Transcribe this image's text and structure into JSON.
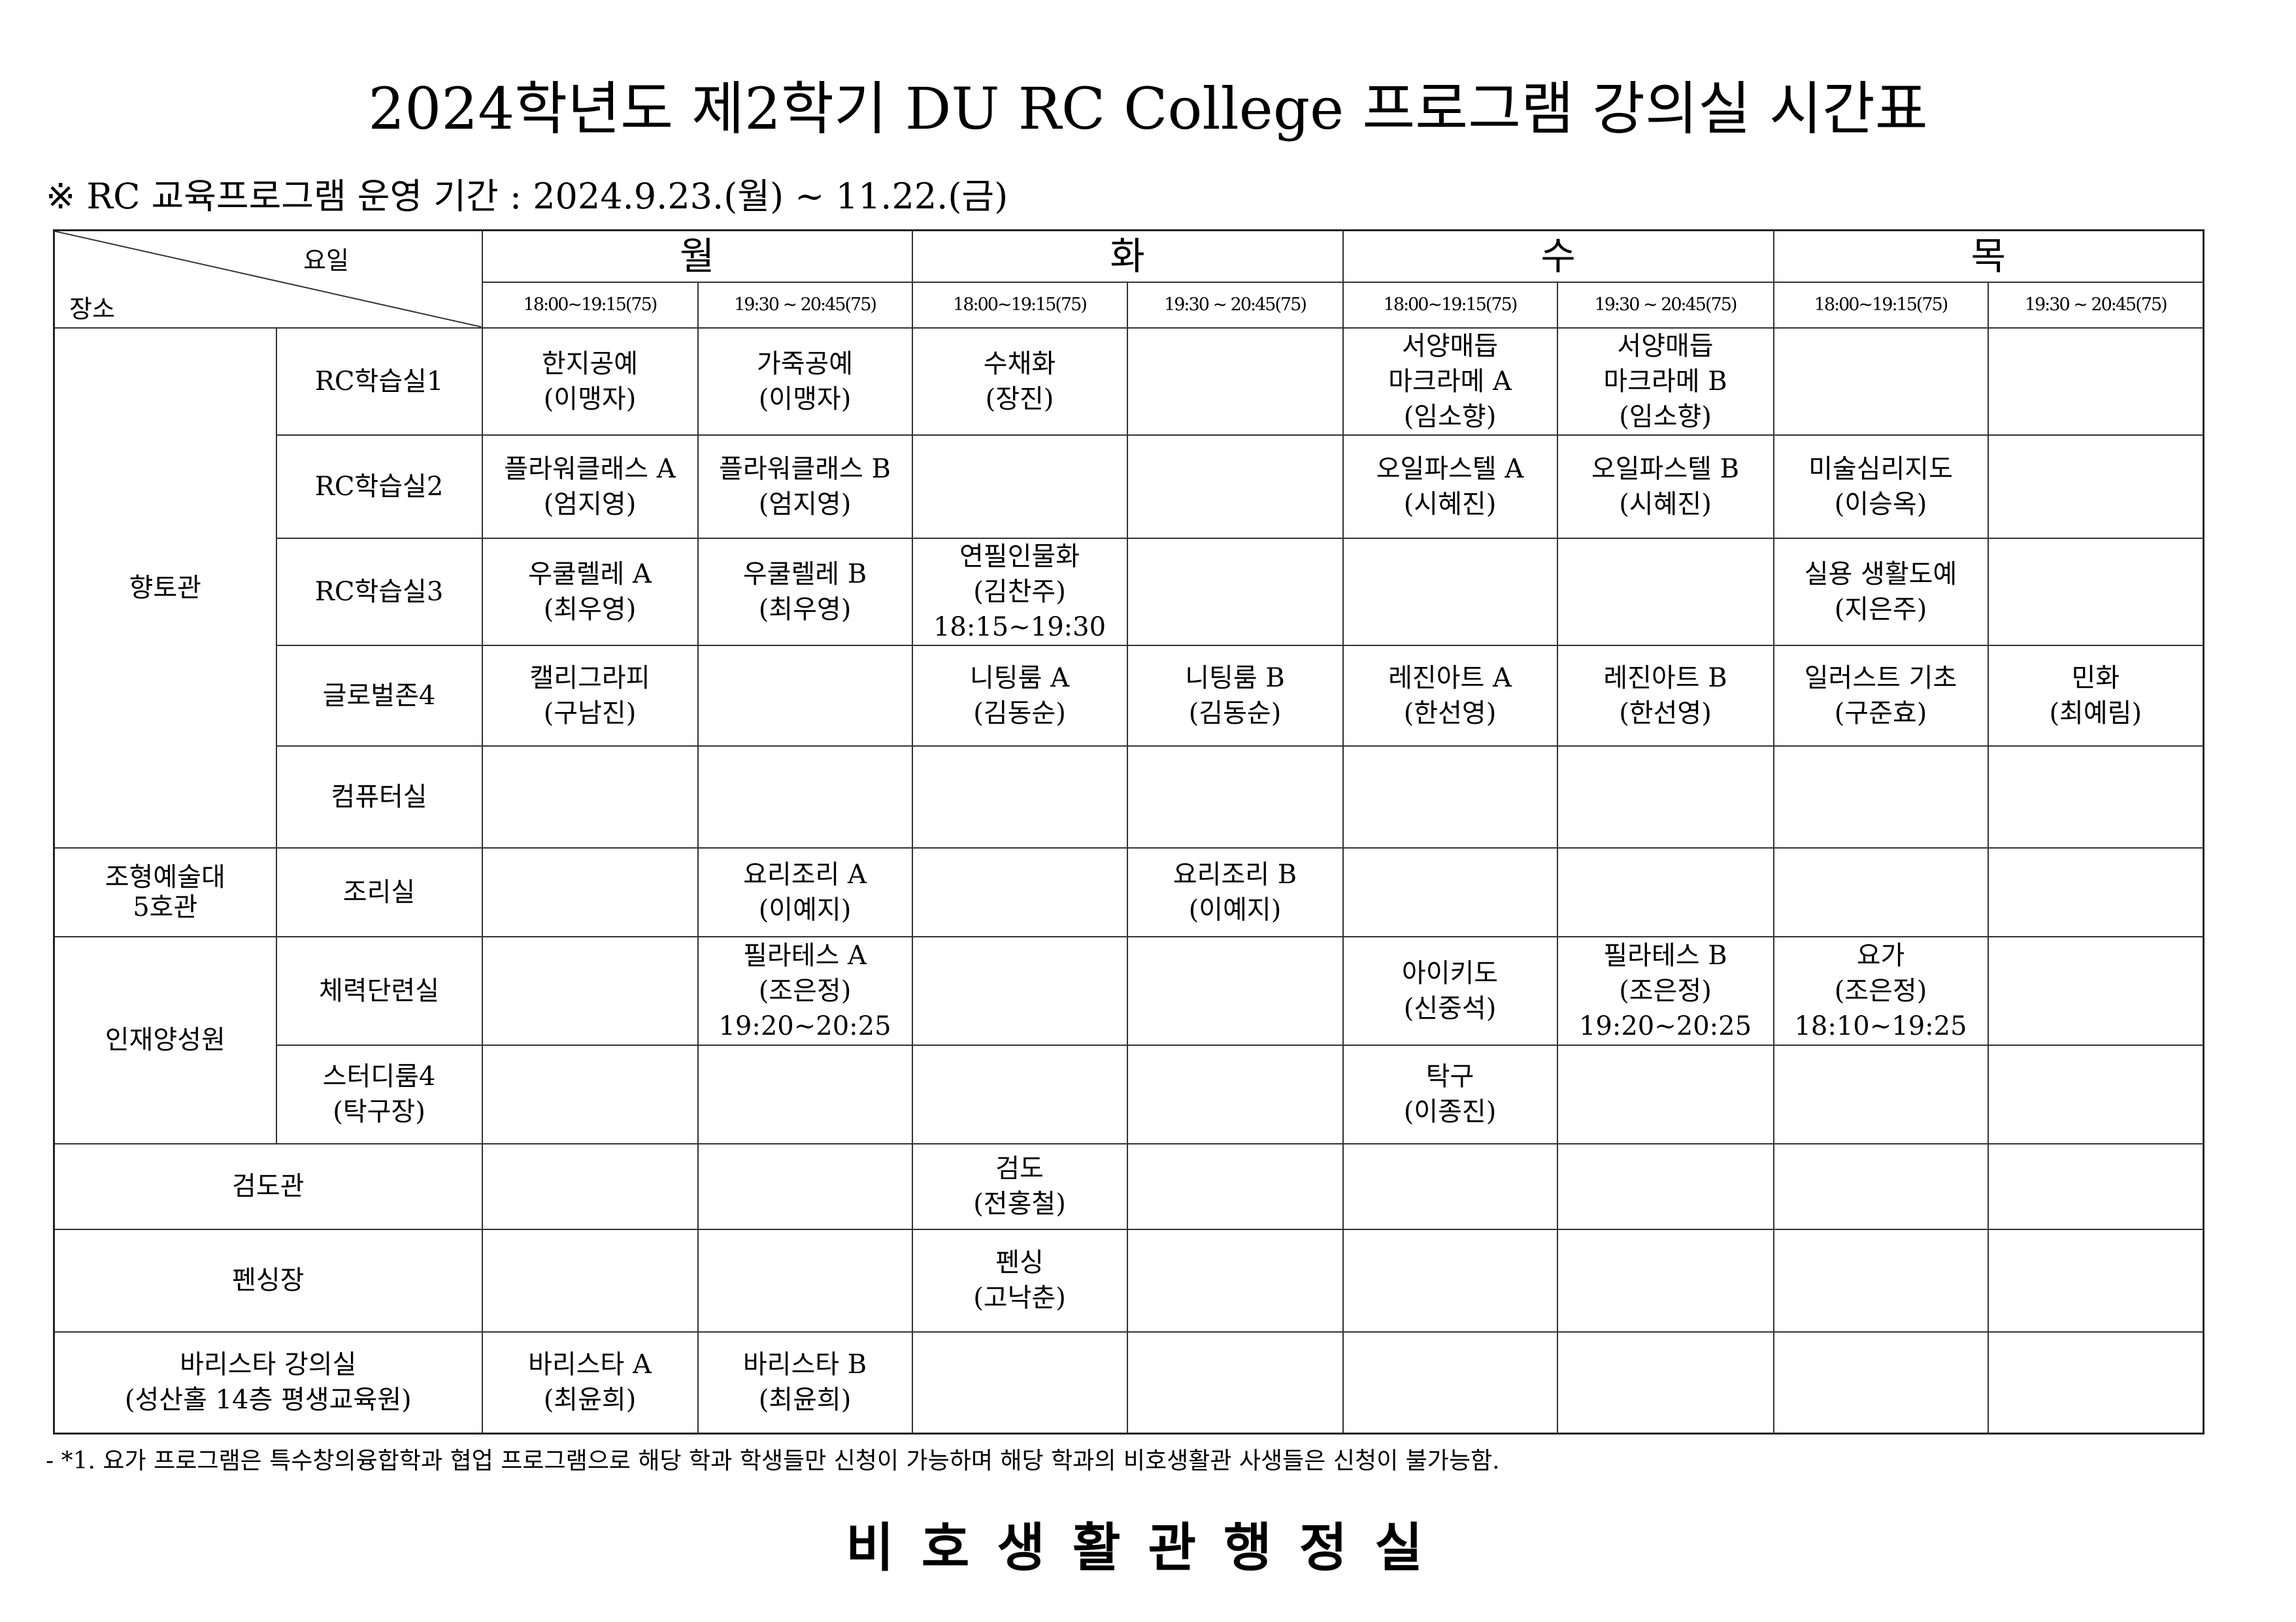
{
  "title": "2024학년도 제2학기 DU RC College 프로그램 강의실 시간표",
  "subtitle": "※ RC 교육프로그램 운영 기간 : 2024.9.23.(월) ~ 11.22.(금)",
  "header": {
    "corner_day": "요일",
    "corner_place": "장소",
    "days": [
      "월",
      "화",
      "수",
      "목"
    ],
    "times": [
      "18:00~19:15(75)",
      "19:30 ~ 20:45(75)",
      "18:00~19:15(75)",
      "19:30 ~ 20:45(75)",
      "18:00~19:15(75)",
      "19:30 ~ 20:45(75)",
      "18:00~19:15(75)",
      "19:30 ~ 20:45(75)"
    ]
  },
  "rows": [
    {
      "building": "향토관",
      "building_span": 5,
      "room": [
        "RC학습실1"
      ],
      "cells": [
        [
          "한지공예",
          "(이맹자)"
        ],
        [
          "가죽공예",
          "(이맹자)"
        ],
        [
          "수채화",
          "(장진)"
        ],
        [],
        [
          "서양매듭",
          "마크라메 A",
          "(임소향)"
        ],
        [
          "서양매듭",
          "마크라메 B",
          "(임소향)"
        ],
        [],
        []
      ]
    },
    {
      "room": [
        "RC학습실2"
      ],
      "cells": [
        [
          "플라워클래스 A",
          "(엄지영)"
        ],
        [
          "플라워클래스 B",
          "(엄지영)"
        ],
        [],
        [],
        [
          "오일파스텔 A",
          "(시혜진)"
        ],
        [
          "오일파스텔 B",
          "(시혜진)"
        ],
        [
          "미술심리지도",
          "(이승옥)"
        ],
        []
      ]
    },
    {
      "room": [
        "RC학습실3"
      ],
      "cells": [
        [
          "우쿨렐레 A",
          "(최우영)"
        ],
        [
          "우쿨렐레 B",
          "(최우영)"
        ],
        [
          "연필인물화",
          "(김찬주)",
          "18:15~19:30"
        ],
        [],
        [],
        [],
        [
          "실용 생활도예",
          "(지은주)"
        ],
        []
      ]
    },
    {
      "room": [
        "글로벌존4"
      ],
      "cells": [
        [
          "캘리그라피",
          "(구남진)"
        ],
        [],
        [
          "니팅룸 A",
          "(김동순)"
        ],
        [
          "니팅룸 B",
          "(김동순)"
        ],
        [
          "레진아트 A",
          "(한선영)"
        ],
        [
          "레진아트 B",
          "(한선영)"
        ],
        [
          "일러스트 기초",
          "(구준효)"
        ],
        [
          "민화",
          "(최예림)"
        ]
      ]
    },
    {
      "room": [
        "컴퓨터실"
      ],
      "cells": [
        [],
        [],
        [],
        [],
        [],
        [],
        [],
        []
      ]
    },
    {
      "building": "조형예술대\n5호관",
      "building_span": 1,
      "room": [
        "조리실"
      ],
      "cells": [
        [],
        [
          "요리조리 A",
          "(이예지)"
        ],
        [],
        [
          "요리조리 B",
          "(이예지)"
        ],
        [],
        [],
        [],
        []
      ]
    },
    {
      "building": "인재양성원",
      "building_span": 2,
      "room": [
        "체력단련실"
      ],
      "cells": [
        [],
        [
          "필라테스 A",
          "(조은정)",
          "19:20~20:25"
        ],
        [],
        [],
        [
          "아이키도",
          "(신중석)"
        ],
        [
          "필라테스 B",
          "(조은정)",
          "19:20~20:25"
        ],
        [
          "요가",
          "(조은정)",
          "18:10~19:25"
        ],
        []
      ]
    },
    {
      "room": [
        "스터디룸4",
        "(탁구장)"
      ],
      "cells": [
        [],
        [],
        [],
        [],
        [
          "탁구",
          "(이종진)"
        ],
        [],
        [],
        []
      ]
    },
    {
      "merged": [
        "검도관"
      ],
      "cells": [
        [],
        [],
        [
          "검도",
          "(전홍철)"
        ],
        [],
        [],
        [],
        [],
        []
      ]
    },
    {
      "merged": [
        "펜싱장"
      ],
      "cells": [
        [],
        [],
        [
          "펜싱",
          "(고낙춘)"
        ],
        [],
        [],
        [],
        [],
        []
      ]
    },
    {
      "merged": [
        "바리스타 강의실",
        "(성산홀 14층 평생교육원)"
      ],
      "cells": [
        [
          "바리스타 A",
          "(최윤희)"
        ],
        [
          "바리스타 B",
          "(최윤희)"
        ],
        [],
        [],
        [],
        [],
        [],
        []
      ]
    }
  ],
  "note": "- *1. 요가 프로그램은 특수창의융합학과 협업 프로그램으로 해당 학과 학생들만 신청이 가능하며 해당 학과의 비호생활관 사생들은 신청이 불가능함.",
  "office": "비호생활관행정실"
}
